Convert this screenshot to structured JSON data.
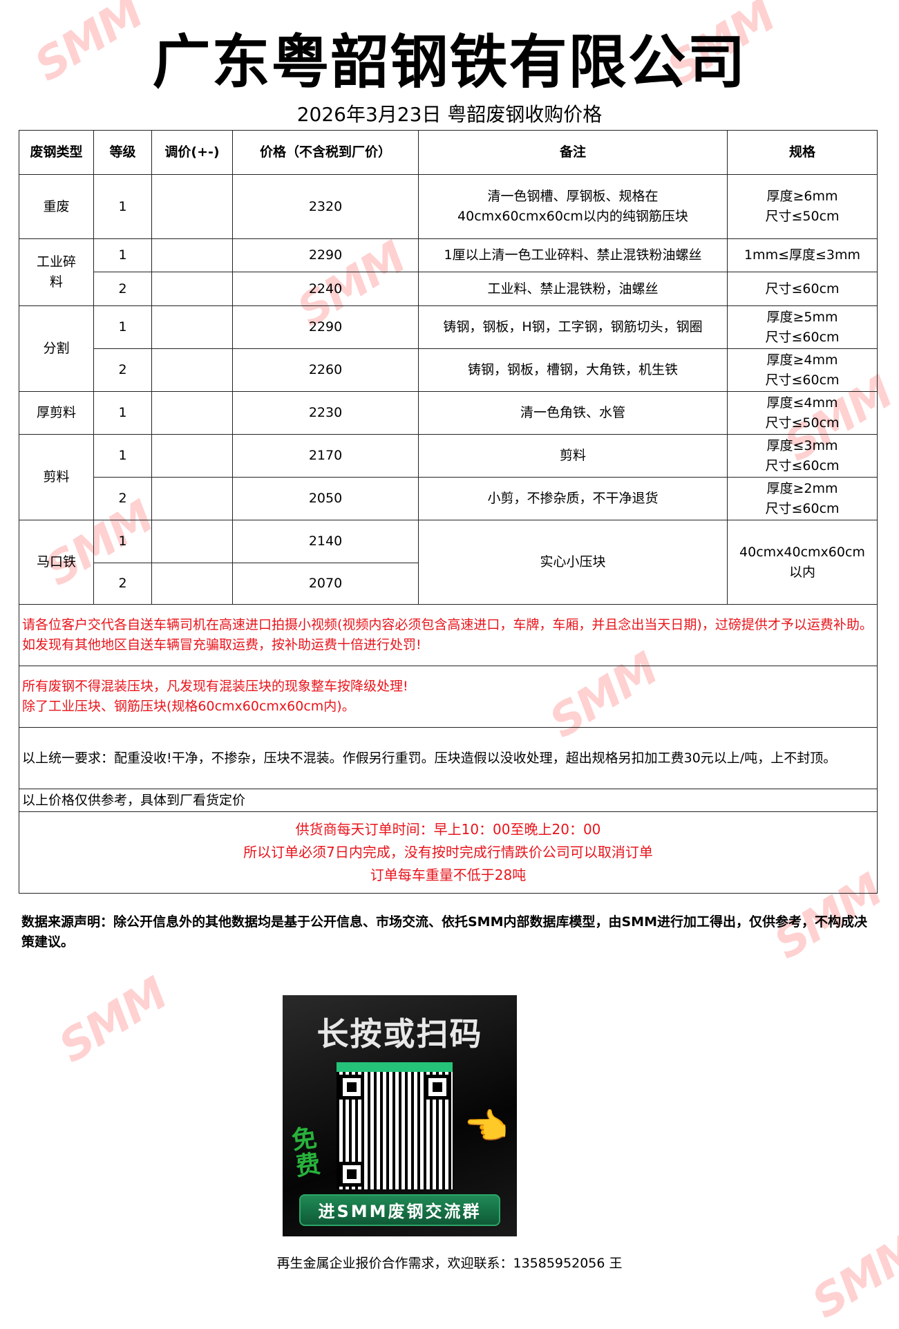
{
  "header": {
    "title": "广东粤韶钢铁有限公司",
    "subtitle": "2026年3月23日  粤韶废钢收购价格"
  },
  "table": {
    "columns": [
      "废钢类型",
      "等级",
      "调价(+-)",
      "价格（不含税到厂价）",
      "备注",
      "规格"
    ],
    "rows": [
      {
        "type": "重废",
        "grade": "1",
        "adjust": "",
        "price": "2320",
        "note": "清一色钢槽、厚钢板、规格在40cmx60cmx60cm以内的纯钢筋压块",
        "spec": [
          "厚度≥6mm",
          "尺寸≤50cm"
        ]
      },
      {
        "type": "工业碎料",
        "grade": "1",
        "adjust": "",
        "price": "2290",
        "note": "1厘以上清一色工业碎料、禁止混铁粉油螺丝",
        "spec": [
          "1mm≤厚度≤3mm"
        ]
      },
      {
        "type": "",
        "grade": "2",
        "adjust": "",
        "price": "2240",
        "note": "工业料、禁止混铁粉，油螺丝",
        "spec": [
          "尺寸≤60cm"
        ]
      },
      {
        "type": "分割",
        "grade": "1",
        "adjust": "",
        "price": "2290",
        "note": "铸钢，钢板，H钢，工字钢，钢筋切头，钢圈",
        "spec": [
          "厚度≥5mm",
          "尺寸≤60cm"
        ]
      },
      {
        "type": "",
        "grade": "2",
        "adjust": "",
        "price": "2260",
        "note": "铸钢，钢板，槽钢，大角铁，机生铁",
        "spec": [
          "厚度≥4mm",
          "尺寸≤60cm"
        ]
      },
      {
        "type": "厚剪料",
        "grade": "1",
        "adjust": "",
        "price": "2230",
        "note": "清一色角铁、水管",
        "spec": [
          "厚度≤4mm",
          "尺寸≤50cm"
        ]
      },
      {
        "type": "剪料",
        "grade": "1",
        "adjust": "",
        "price": "2170",
        "note": "剪料",
        "spec": [
          "厚度≤3mm",
          "尺寸≤60cm"
        ]
      },
      {
        "type": "",
        "grade": "2",
        "adjust": "",
        "price": "2050",
        "note": "小剪，不掺杂质，不干净退货",
        "spec": [
          "厚度≥2mm",
          "尺寸≤60cm"
        ]
      },
      {
        "type": "马口铁",
        "grade": "1",
        "adjust": "",
        "price": "2140",
        "note": "实心小压块",
        "spec": [
          "40cmx40cmx60cm",
          "以内"
        ]
      },
      {
        "type": "",
        "grade": "2",
        "adjust": "",
        "price": "2070",
        "note": "",
        "spec": []
      }
    ]
  },
  "notices": {
    "transport": "请各位客户交代各自送车辆司机在高速进口拍摄小视频(视频内容必须包含高速进口，车牌，车厢，并且念出当天日期)，过磅提供才予以运费补助。如发现有其他地区自送车辆冒充骗取运费，按补助运费十倍进行处罚!",
    "mixing_1": "所有废钢不得混装压块，凡发现有混装压块的现象整车按降级处理!",
    "mixing_2": "除了工业压块、钢筋压块(规格60cmx60cmx60cm内)。",
    "requirements": "以上统一要求：配重没收!干净，不掺杂，压块不混装。作假另行重罚。压块造假以没收处理，超出规格另扣加工费30元以上/吨，上不封顶。",
    "reference": "以上价格仅供参考，具体到厂看货定价",
    "order_1": "供货商每天订单时间：早上10：00至晚上20：00",
    "order_2": "所以订单必须7日内完成，没有按时完成行情跌价公司可以取消订单",
    "order_3": "订单每车重量不低于28吨"
  },
  "disclaimer": "数据来源声明：除公开信息外的其他数据均是基于公开信息、市场交流、依托SMM内部数据库模型，由SMM进行加工得出，仅供参考，不构成决策建议。",
  "qr_banner": {
    "heading": "长按或扫码",
    "free": "免费",
    "button": "进SMM废钢交流群"
  },
  "contact": "再生金属企业报价合作需求，欢迎联系：13585952056 王",
  "watermark": "SMM",
  "colors": {
    "notice_red": "#e8141b",
    "watermark": "#ff5a5a",
    "qr_green": "#25c27a"
  }
}
